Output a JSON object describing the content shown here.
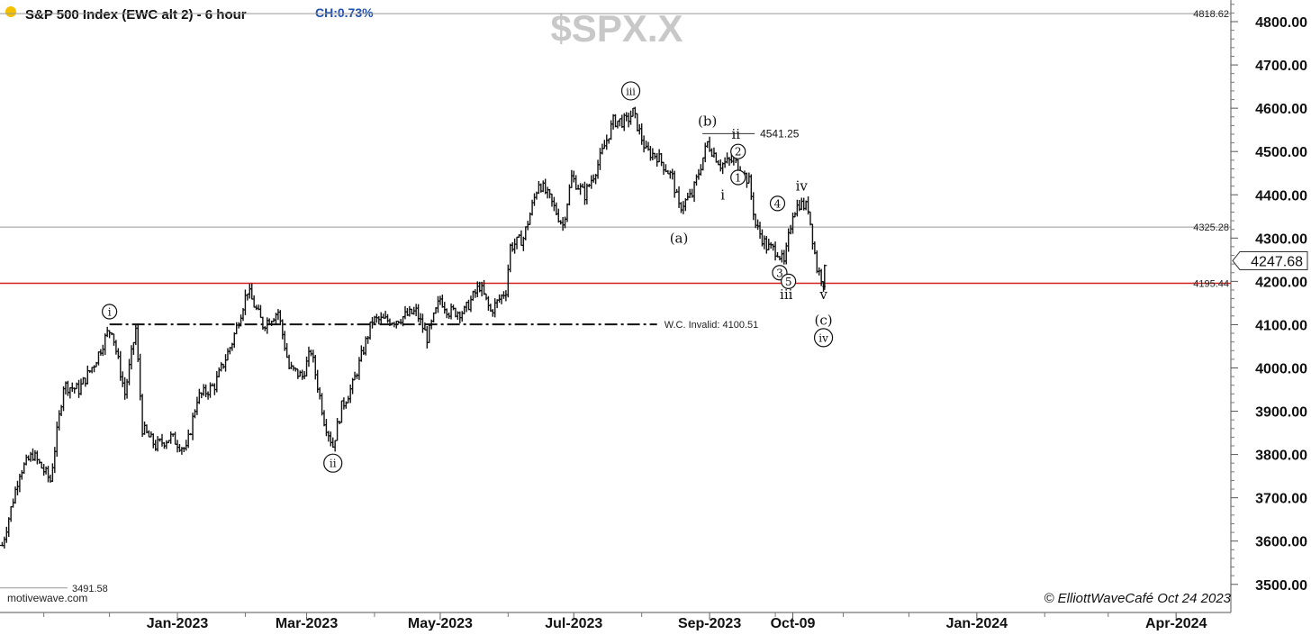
{
  "header": {
    "title": "S&P 500 Index (EWC alt 2) - 6 hour",
    "change": "CH:0.73%",
    "watermark": "$SPX.X",
    "dot_color": "#f5c000",
    "change_color": "#1f4fb0"
  },
  "footer": {
    "source": "motivewave.com",
    "credit": "© ElliottWaveCafé Oct 24 2023"
  },
  "chart_data": {
    "type": "ohlc",
    "yaxis": {
      "range": [
        3435,
        4850
      ],
      "ticks": [
        "3500.00",
        "3600.00",
        "3700.00",
        "3800.00",
        "3900.00",
        "4000.00",
        "4100.00",
        "4200.00",
        "4300.00",
        "4400.00",
        "4500.00",
        "4600.00",
        "4700.00",
        "4800.00"
      ]
    },
    "xaxis": {
      "labels": [
        {
          "text": "Jan-2023",
          "date": "2023-01-01"
        },
        {
          "text": "Mar-2023",
          "date": "2023-03-01"
        },
        {
          "text": "May-2023",
          "date": "2023-05-01"
        },
        {
          "text": "Jul-2023",
          "date": "2023-07-01"
        },
        {
          "text": "Sep-2023",
          "date": "2023-09-01"
        },
        {
          "text": "Oct-09",
          "date": "2023-10-09"
        },
        {
          "text": "Jan-2024",
          "date": "2024-01-01"
        },
        {
          "text": "Apr-2024",
          "date": "2024-04-01"
        }
      ]
    },
    "price_path": [
      [
        "2022-10-13",
        3590
      ],
      [
        "2022-10-21",
        3760
      ],
      [
        "2022-10-27",
        3800
      ],
      [
        "2022-11-04",
        3740
      ],
      [
        "2022-11-10",
        3960
      ],
      [
        "2022-11-17",
        3950
      ],
      [
        "2022-11-24",
        4010
      ],
      [
        "2022-11-30",
        4080
      ],
      [
        "2022-12-02",
        4090
      ],
      [
        "2022-12-08",
        3940
      ],
      [
        "2022-12-13",
        4090
      ],
      [
        "2022-12-16",
        3860
      ],
      [
        "2022-12-22",
        3820
      ],
      [
        "2022-12-29",
        3840
      ],
      [
        "2023-01-05",
        3810
      ],
      [
        "2023-01-10",
        3930
      ],
      [
        "2023-01-18",
        3960
      ],
      [
        "2023-01-26",
        4060
      ],
      [
        "2023-02-02",
        4180
      ],
      [
        "2023-02-09",
        4100
      ],
      [
        "2023-02-16",
        4130
      ],
      [
        "2023-02-21",
        4000
      ],
      [
        "2023-02-27",
        3980
      ],
      [
        "2023-03-03",
        4040
      ],
      [
        "2023-03-09",
        3880
      ],
      [
        "2023-03-13",
        3820
      ],
      [
        "2023-03-17",
        3910
      ],
      [
        "2023-03-22",
        3960
      ],
      [
        "2023-03-31",
        4110
      ],
      [
        "2023-04-10",
        4110
      ],
      [
        "2023-04-20",
        4130
      ],
      [
        "2023-04-25",
        4070
      ],
      [
        "2023-05-01",
        4160
      ],
      [
        "2023-05-05",
        4130
      ],
      [
        "2023-05-12",
        4130
      ],
      [
        "2023-05-19",
        4190
      ],
      [
        "2023-05-24",
        4130
      ],
      [
        "2023-05-31",
        4180
      ],
      [
        "2023-06-02",
        4280
      ],
      [
        "2023-06-08",
        4300
      ],
      [
        "2023-06-15",
        4430
      ],
      [
        "2023-06-20",
        4390
      ],
      [
        "2023-06-26",
        4330
      ],
      [
        "2023-06-30",
        4440
      ],
      [
        "2023-07-06",
        4400
      ],
      [
        "2023-07-12",
        4470
      ],
      [
        "2023-07-19",
        4570
      ],
      [
        "2023-07-25",
        4570
      ],
      [
        "2023-07-28",
        4590
      ],
      [
        "2023-08-03",
        4500
      ],
      [
        "2023-08-08",
        4490
      ],
      [
        "2023-08-15",
        4440
      ],
      [
        "2023-08-18",
        4370
      ],
      [
        "2023-08-24",
        4400
      ],
      [
        "2023-08-31",
        4520
      ],
      [
        "2023-09-06",
        4470
      ],
      [
        "2023-09-12",
        4480
      ],
      [
        "2023-09-19",
        4430
      ],
      [
        "2023-09-22",
        4330
      ],
      [
        "2023-09-27",
        4280
      ],
      [
        "2023-10-02",
        4270
      ],
      [
        "2023-10-05",
        4240
      ],
      [
        "2023-10-09",
        4360
      ],
      [
        "2023-10-12",
        4380
      ],
      [
        "2023-10-16",
        4370
      ],
      [
        "2023-10-20",
        4230
      ],
      [
        "2023-10-23",
        4200
      ],
      [
        "2023-10-24",
        4247
      ]
    ],
    "last_price": "4247.68",
    "hlines": [
      {
        "value": 4818.62,
        "label": "4818.62",
        "color": "#999999"
      },
      {
        "value": 4325.28,
        "label": "4325.28",
        "color": "#999999"
      },
      {
        "value": 4195.44,
        "label": "4195.44",
        "color": "#d42020"
      },
      {
        "value": 3491.58,
        "label": "3491.58",
        "color": "#999999"
      }
    ],
    "invalid_line": {
      "value": 4100.51,
      "label": "W.C. Invalid: 4100.51",
      "from": "2022-12-01",
      "to": "2023-08-08"
    },
    "wave_labels": [
      {
        "text": "i",
        "circled": true,
        "date": "2022-12-01",
        "price": 4130
      },
      {
        "text": "ii",
        "circled": true,
        "date": "2023-03-13",
        "price": 3780
      },
      {
        "text": "iii",
        "circled": true,
        "date": "2023-07-27",
        "price": 4640
      },
      {
        "text": "iv",
        "circled": true,
        "date": "2023-10-23",
        "price": 4070
      },
      {
        "text": "(a)",
        "circled": false,
        "date": "2023-08-18",
        "price": 4300
      },
      {
        "text": "(b)",
        "circled": false,
        "date": "2023-08-31",
        "price": 4570
      },
      {
        "text": "(c)",
        "circled": false,
        "date": "2023-10-23",
        "price": 4110
      },
      {
        "text": "i",
        "circled": false,
        "date": "2023-09-07",
        "price": 4400
      },
      {
        "text": "ii",
        "circled": false,
        "date": "2023-09-13",
        "price": 4540
      },
      {
        "text": "iii",
        "circled": false,
        "date": "2023-10-06",
        "price": 4170
      },
      {
        "text": "iv",
        "circled": false,
        "date": "2023-10-13",
        "price": 4420
      },
      {
        "text": "v",
        "circled": false,
        "date": "2023-10-23",
        "price": 4170
      },
      {
        "text": "1",
        "circled": true,
        "date": "2023-09-14",
        "price": 4440
      },
      {
        "text": "2",
        "circled": true,
        "date": "2023-09-14",
        "price": 4500
      },
      {
        "text": "3",
        "circled": true,
        "date": "2023-10-03",
        "price": 4220
      },
      {
        "text": "4",
        "circled": true,
        "date": "2023-10-02",
        "price": 4380
      },
      {
        "text": "5",
        "circled": true,
        "date": "2023-10-07",
        "price": 4200
      }
    ],
    "b_high": {
      "text": "4541.25",
      "date": "2023-09-01",
      "price": 4541.25
    }
  }
}
